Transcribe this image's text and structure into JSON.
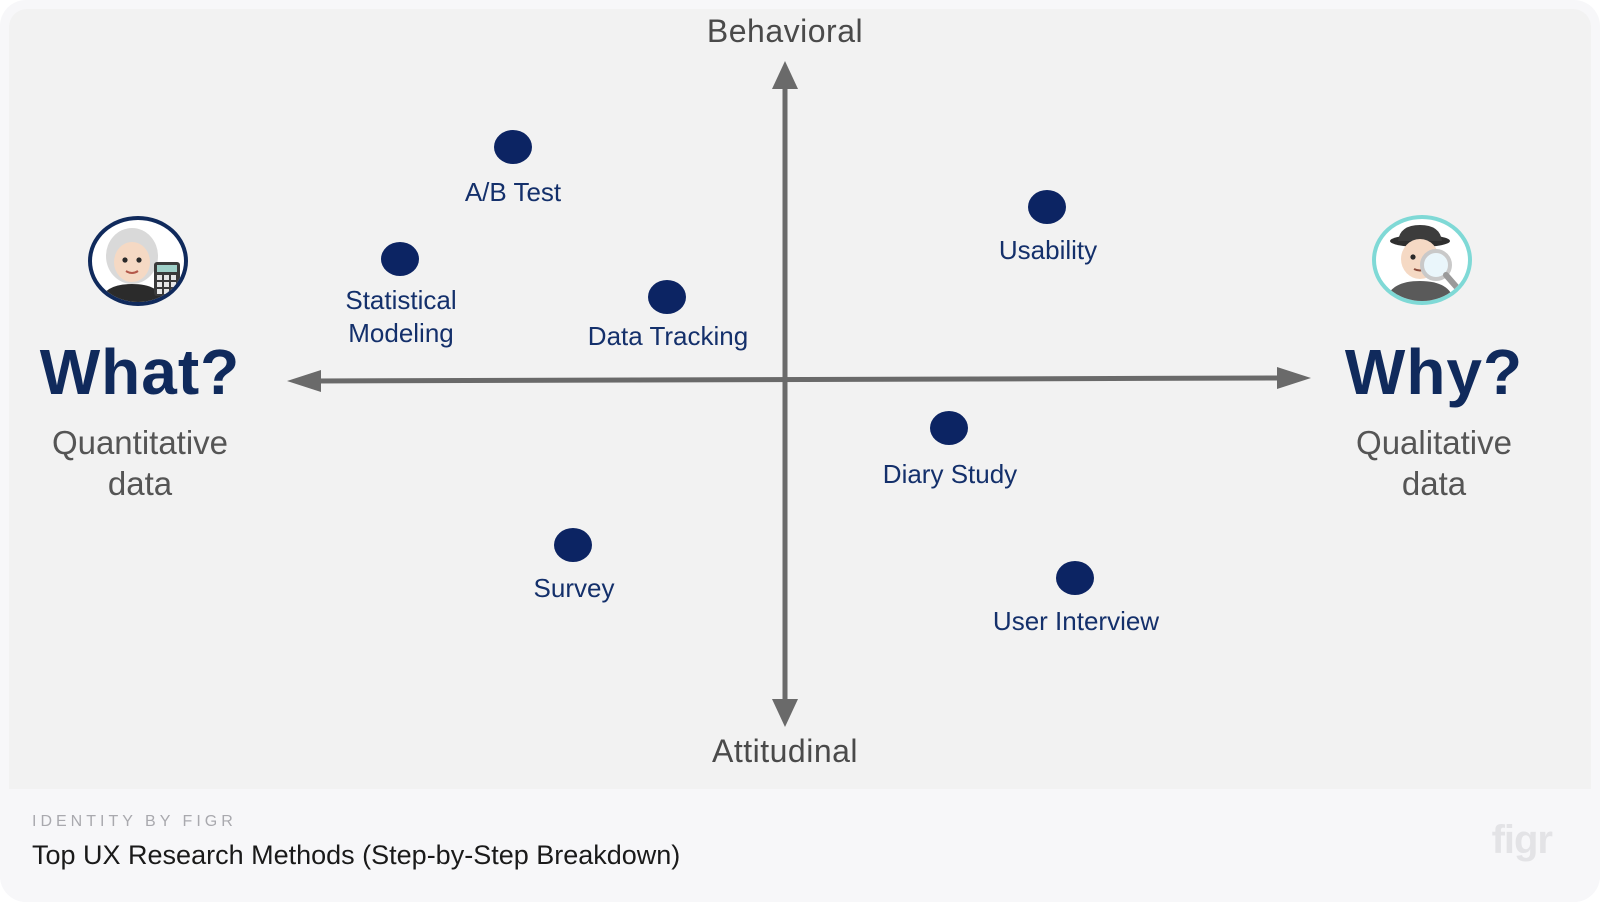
{
  "diagram": {
    "axes": {
      "top": "Behavioral",
      "bottom": "Attitudinal"
    },
    "left": {
      "title": "What?",
      "subtitle_line1": "Quantitative",
      "subtitle_line2": "data"
    },
    "right": {
      "title": "Why?",
      "subtitle_line1": "Qualitative",
      "subtitle_line2": "data"
    },
    "methods": {
      "ab_test": "A/B Test",
      "statistical_modeling_line1": "Statistical",
      "statistical_modeling_line2": "Modeling",
      "data_tracking": "Data Tracking",
      "usability": "Usability",
      "diary_study": "Diary Study",
      "survey": "Survey",
      "user_interview": "User Interview"
    },
    "colors": {
      "point": "#0c2463",
      "axis": "#6a6a6a",
      "left_avatar_ring": "#102a5c",
      "right_avatar_ring": "#7fd9d6"
    }
  },
  "footer": {
    "brand": "IDENTITY BY FIGR",
    "title": "Top UX Research Methods (Step-by-Step Breakdown)",
    "logo": "figr"
  }
}
